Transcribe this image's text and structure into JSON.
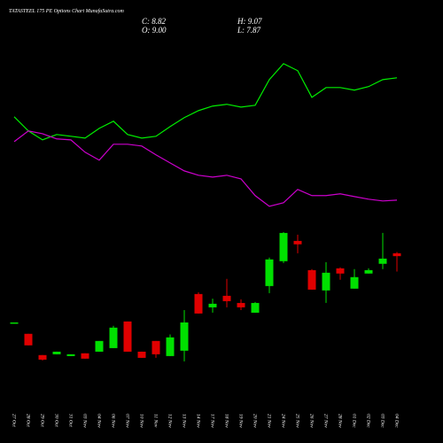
{
  "chart_data": {
    "type": "candlestick",
    "title": "TATASTEEL 175 PE Options Chart MunafaSutra.com",
    "annotations": [
      "C: 8.82",
      "H: 9.07",
      "O: 9.00",
      "L: 7.87"
    ],
    "categories": [
      "27 Oct",
      "28 Oct",
      "29 Oct",
      "30 Oct",
      "31 Oct",
      "03 Nov",
      "04 Nov",
      "06 Nov",
      "07 Nov",
      "10 Nov",
      "11 Nov",
      "12 Nov",
      "13 Nov",
      "14 Nov",
      "17 Nov",
      "18 Nov",
      "19 Nov",
      "20 Nov",
      "21 Nov",
      "24 Nov",
      "25 Nov",
      "26 Nov",
      "27 Nov",
      "28 Nov",
      "01 Dec",
      "02 Dec",
      "03 Dec",
      "04 Dec"
    ],
    "open": [
      4.74,
      4.04,
      2.73,
      2.78,
      2.67,
      2.84,
      2.94,
      3.16,
      4.8,
      2.94,
      3.6,
      2.67,
      3.0,
      6.49,
      5.67,
      6.38,
      5.94,
      5.34,
      6.98,
      8.51,
      9.76,
      7.96,
      6.71,
      8.07,
      6.82,
      7.75,
      8.35,
      9.0
    ],
    "high": [
      4.74,
      4.04,
      2.73,
      2.94,
      2.78,
      2.84,
      3.6,
      4.53,
      4.8,
      2.94,
      3.6,
      4.0,
      5.5,
      6.6,
      6.2,
      7.42,
      6.16,
      6.0,
      8.73,
      10.3,
      10.14,
      8.02,
      8.45,
      8.13,
      8.02,
      8.07,
      10.25,
      9.07
    ],
    "low": [
      4.74,
      3.33,
      2.4,
      2.78,
      2.67,
      2.51,
      2.94,
      3.16,
      2.94,
      2.56,
      2.56,
      2.67,
      2.34,
      5.29,
      5.34,
      5.67,
      5.5,
      5.34,
      6.54,
      8.4,
      9.0,
      6.76,
      5.94,
      7.37,
      6.82,
      7.75,
      8.02,
      7.87
    ],
    "close": [
      4.74,
      3.33,
      2.45,
      2.94,
      2.78,
      2.51,
      3.6,
      4.42,
      2.94,
      2.56,
      2.78,
      3.82,
      4.74,
      5.29,
      5.89,
      6.05,
      5.67,
      5.94,
      8.62,
      10.25,
      9.55,
      6.76,
      7.8,
      7.75,
      7.53,
      7.96,
      8.67,
      8.82
    ],
    "up_color": "#00e000",
    "down_color": "#e00000",
    "lines": [
      {
        "color": "#00ee00",
        "values": [
          17.4,
          16.53,
          15.98,
          16.31,
          16.2,
          16.09,
          16.69,
          17.13,
          16.31,
          16.09,
          16.2,
          16.8,
          17.35,
          17.78,
          18.06,
          18.17,
          18.0,
          18.11,
          19.69,
          20.67,
          20.24,
          18.6,
          19.2,
          19.2,
          19.04,
          19.26,
          19.69,
          19.8
        ]
      },
      {
        "color": "#cc00cc",
        "values": [
          15.87,
          16.53,
          16.36,
          16.04,
          15.98,
          15.22,
          14.73,
          15.71,
          15.71,
          15.6,
          15.06,
          14.56,
          14.07,
          13.8,
          13.69,
          13.8,
          13.58,
          12.55,
          11.89,
          12.11,
          12.93,
          12.55,
          12.55,
          12.66,
          12.49,
          12.33,
          12.22,
          12.27
        ]
      }
    ],
    "ylim": [
      -0.5,
      23.5
    ]
  }
}
